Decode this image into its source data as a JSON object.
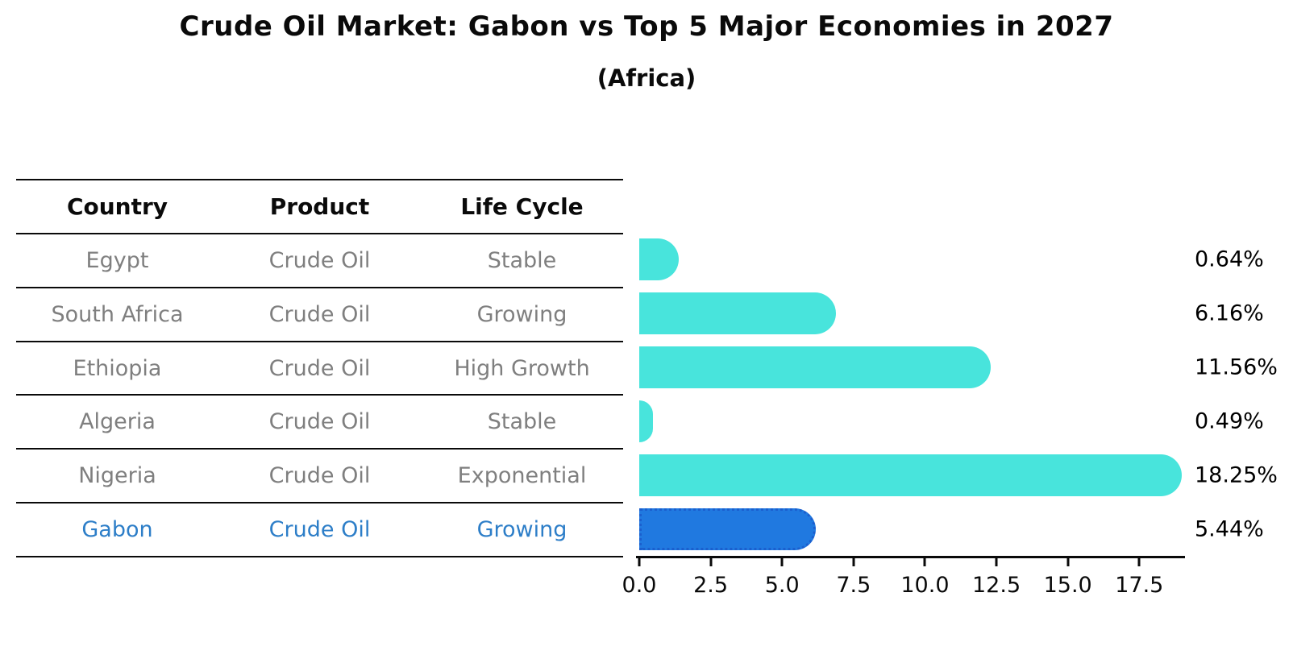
{
  "title": "Crude Oil Market: Gabon vs Top 5 Major Economies in 2027",
  "subtitle": "(Africa)",
  "table": {
    "headers": [
      "Country",
      "Product",
      "Life Cycle"
    ],
    "rows": [
      {
        "country": "Egypt",
        "product": "Crude Oil",
        "life_cycle": "Stable",
        "highlight": false
      },
      {
        "country": "South Africa",
        "product": "Crude Oil",
        "life_cycle": "Growing",
        "highlight": false
      },
      {
        "country": "Ethiopia",
        "product": "Crude Oil",
        "life_cycle": "High Growth",
        "highlight": false
      },
      {
        "country": "Algeria",
        "product": "Crude Oil",
        "life_cycle": "Stable",
        "highlight": false
      },
      {
        "country": "Nigeria",
        "product": "Crude Oil",
        "life_cycle": "Exponential",
        "highlight": false
      },
      {
        "country": "Gabon",
        "product": "Crude Oil",
        "life_cycle": "Growing",
        "highlight": true
      }
    ]
  },
  "chart_data": {
    "type": "bar",
    "orientation": "horizontal",
    "title": "Crude Oil Market: Gabon vs Top 5 Major Economies in 2027",
    "subtitle": "(Africa)",
    "categories": [
      "Egypt",
      "South Africa",
      "Ethiopia",
      "Algeria",
      "Nigeria",
      "Gabon"
    ],
    "values": [
      0.64,
      6.16,
      11.56,
      0.49,
      18.25,
      5.44
    ],
    "value_labels": [
      "0.64%",
      "6.16%",
      "11.56%",
      "0.49%",
      "18.25%",
      "5.44%"
    ],
    "xticks": [
      0.0,
      2.5,
      5.0,
      7.5,
      10.0,
      12.5,
      15.0,
      17.5
    ],
    "xtick_labels": [
      "0.0",
      "2.5",
      "5.0",
      "7.5",
      "10.0",
      "12.5",
      "15.0",
      "17.5"
    ],
    "xlim": [
      0,
      19.1
    ],
    "grid": false,
    "legend": false,
    "highlight_index": 5,
    "bar_color": "#48E4DC",
    "highlight_bar_color": "#2079E0",
    "highlight_bar_border_color": "#1B5FCE",
    "highlight_text_color": "#2D7EC8"
  }
}
